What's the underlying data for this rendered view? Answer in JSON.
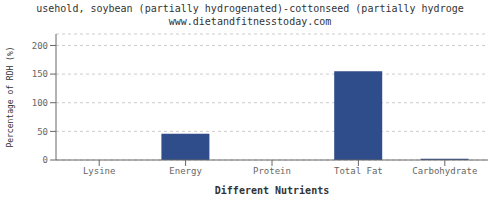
{
  "chart_data": {
    "type": "bar",
    "title": "usehold, soybean (partially hydrogenated)-cottonseed (partially hydroge",
    "subtitle": "www.dietandfitnesstoday.com",
    "xlabel": "Different Nutrients",
    "ylabel": "Percentage of RDH (%)",
    "categories": [
      "Lysine",
      "Energy",
      "Protein",
      "Total Fat",
      "Carbohydrate"
    ],
    "values": [
      0,
      46,
      0,
      155,
      2
    ],
    "color": "#2e4d8a",
    "ylim": [
      0,
      220
    ],
    "yticks": [
      0,
      50,
      100,
      150,
      200
    ],
    "grid": true
  }
}
